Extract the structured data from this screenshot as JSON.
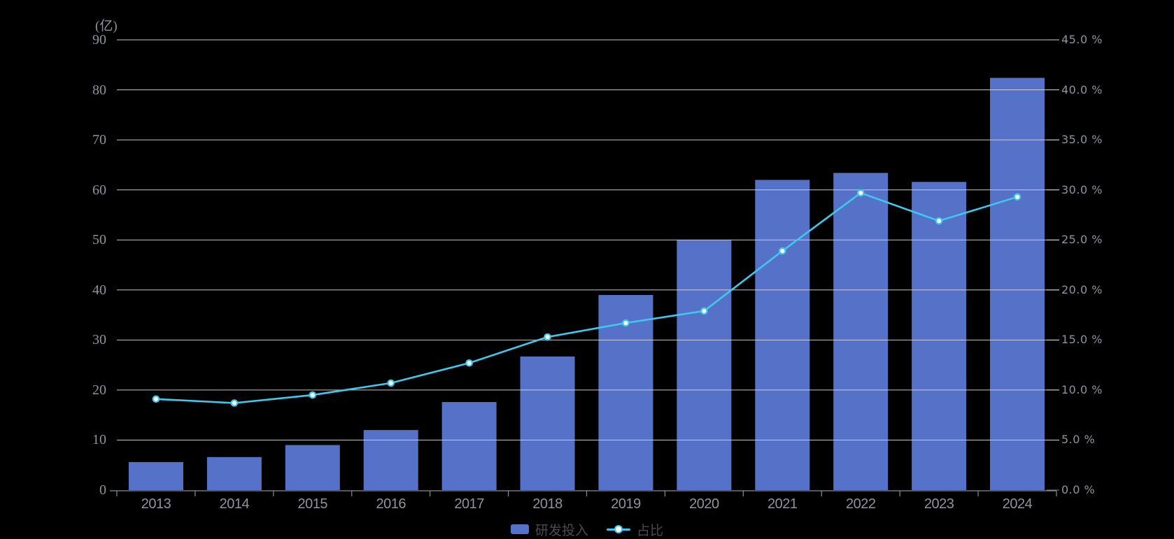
{
  "unit_label": "(亿)",
  "legend": {
    "bar_label": "研发投入",
    "line_label": "占比"
  },
  "colors": {
    "background": "#000000",
    "bar": "#5571c8",
    "line": "#3fc7ec",
    "marker_fill": "#ffffff",
    "gridline": "#d6d6db",
    "axis_line": "#8a8a92",
    "axis_text": "#8f939d",
    "legend_text": "#4a4a52"
  },
  "chart_data": {
    "type": "bar",
    "title": "",
    "categories": [
      "2013",
      "2014",
      "2015",
      "2016",
      "2017",
      "2018",
      "2019",
      "2020",
      "2021",
      "2022",
      "2023",
      "2024"
    ],
    "series": [
      {
        "name": "研发投入",
        "type": "bar",
        "axis": "left",
        "unit": "亿",
        "color": "#5571c8",
        "values": [
          5.6,
          6.6,
          9.0,
          12.0,
          17.6,
          26.7,
          39.0,
          50.0,
          62.0,
          63.4,
          61.6,
          82.4
        ]
      },
      {
        "name": "占比",
        "type": "line",
        "axis": "right",
        "unit": "%",
        "color": "#3fc7ec",
        "values": [
          9.1,
          8.7,
          9.5,
          10.7,
          12.7,
          15.3,
          16.7,
          17.9,
          23.9,
          29.7,
          26.9,
          29.3
        ]
      }
    ],
    "left_axis": {
      "label": "(亿)",
      "min": 0,
      "max": 90,
      "step": 10,
      "ticks": [
        "0",
        "10",
        "20",
        "30",
        "40",
        "50",
        "60",
        "70",
        "80",
        "90"
      ]
    },
    "right_axis": {
      "label": "",
      "min": 0,
      "max": 45,
      "step": 5,
      "ticks": [
        "0.0 %",
        "5.0 %",
        "10.0 %",
        "15.0 %",
        "20.0 %",
        "25.0 %",
        "30.0 %",
        "35.0 %",
        "40.0 %",
        "45.0 %"
      ]
    },
    "grid": true,
    "legend_position": "bottom-center"
  }
}
